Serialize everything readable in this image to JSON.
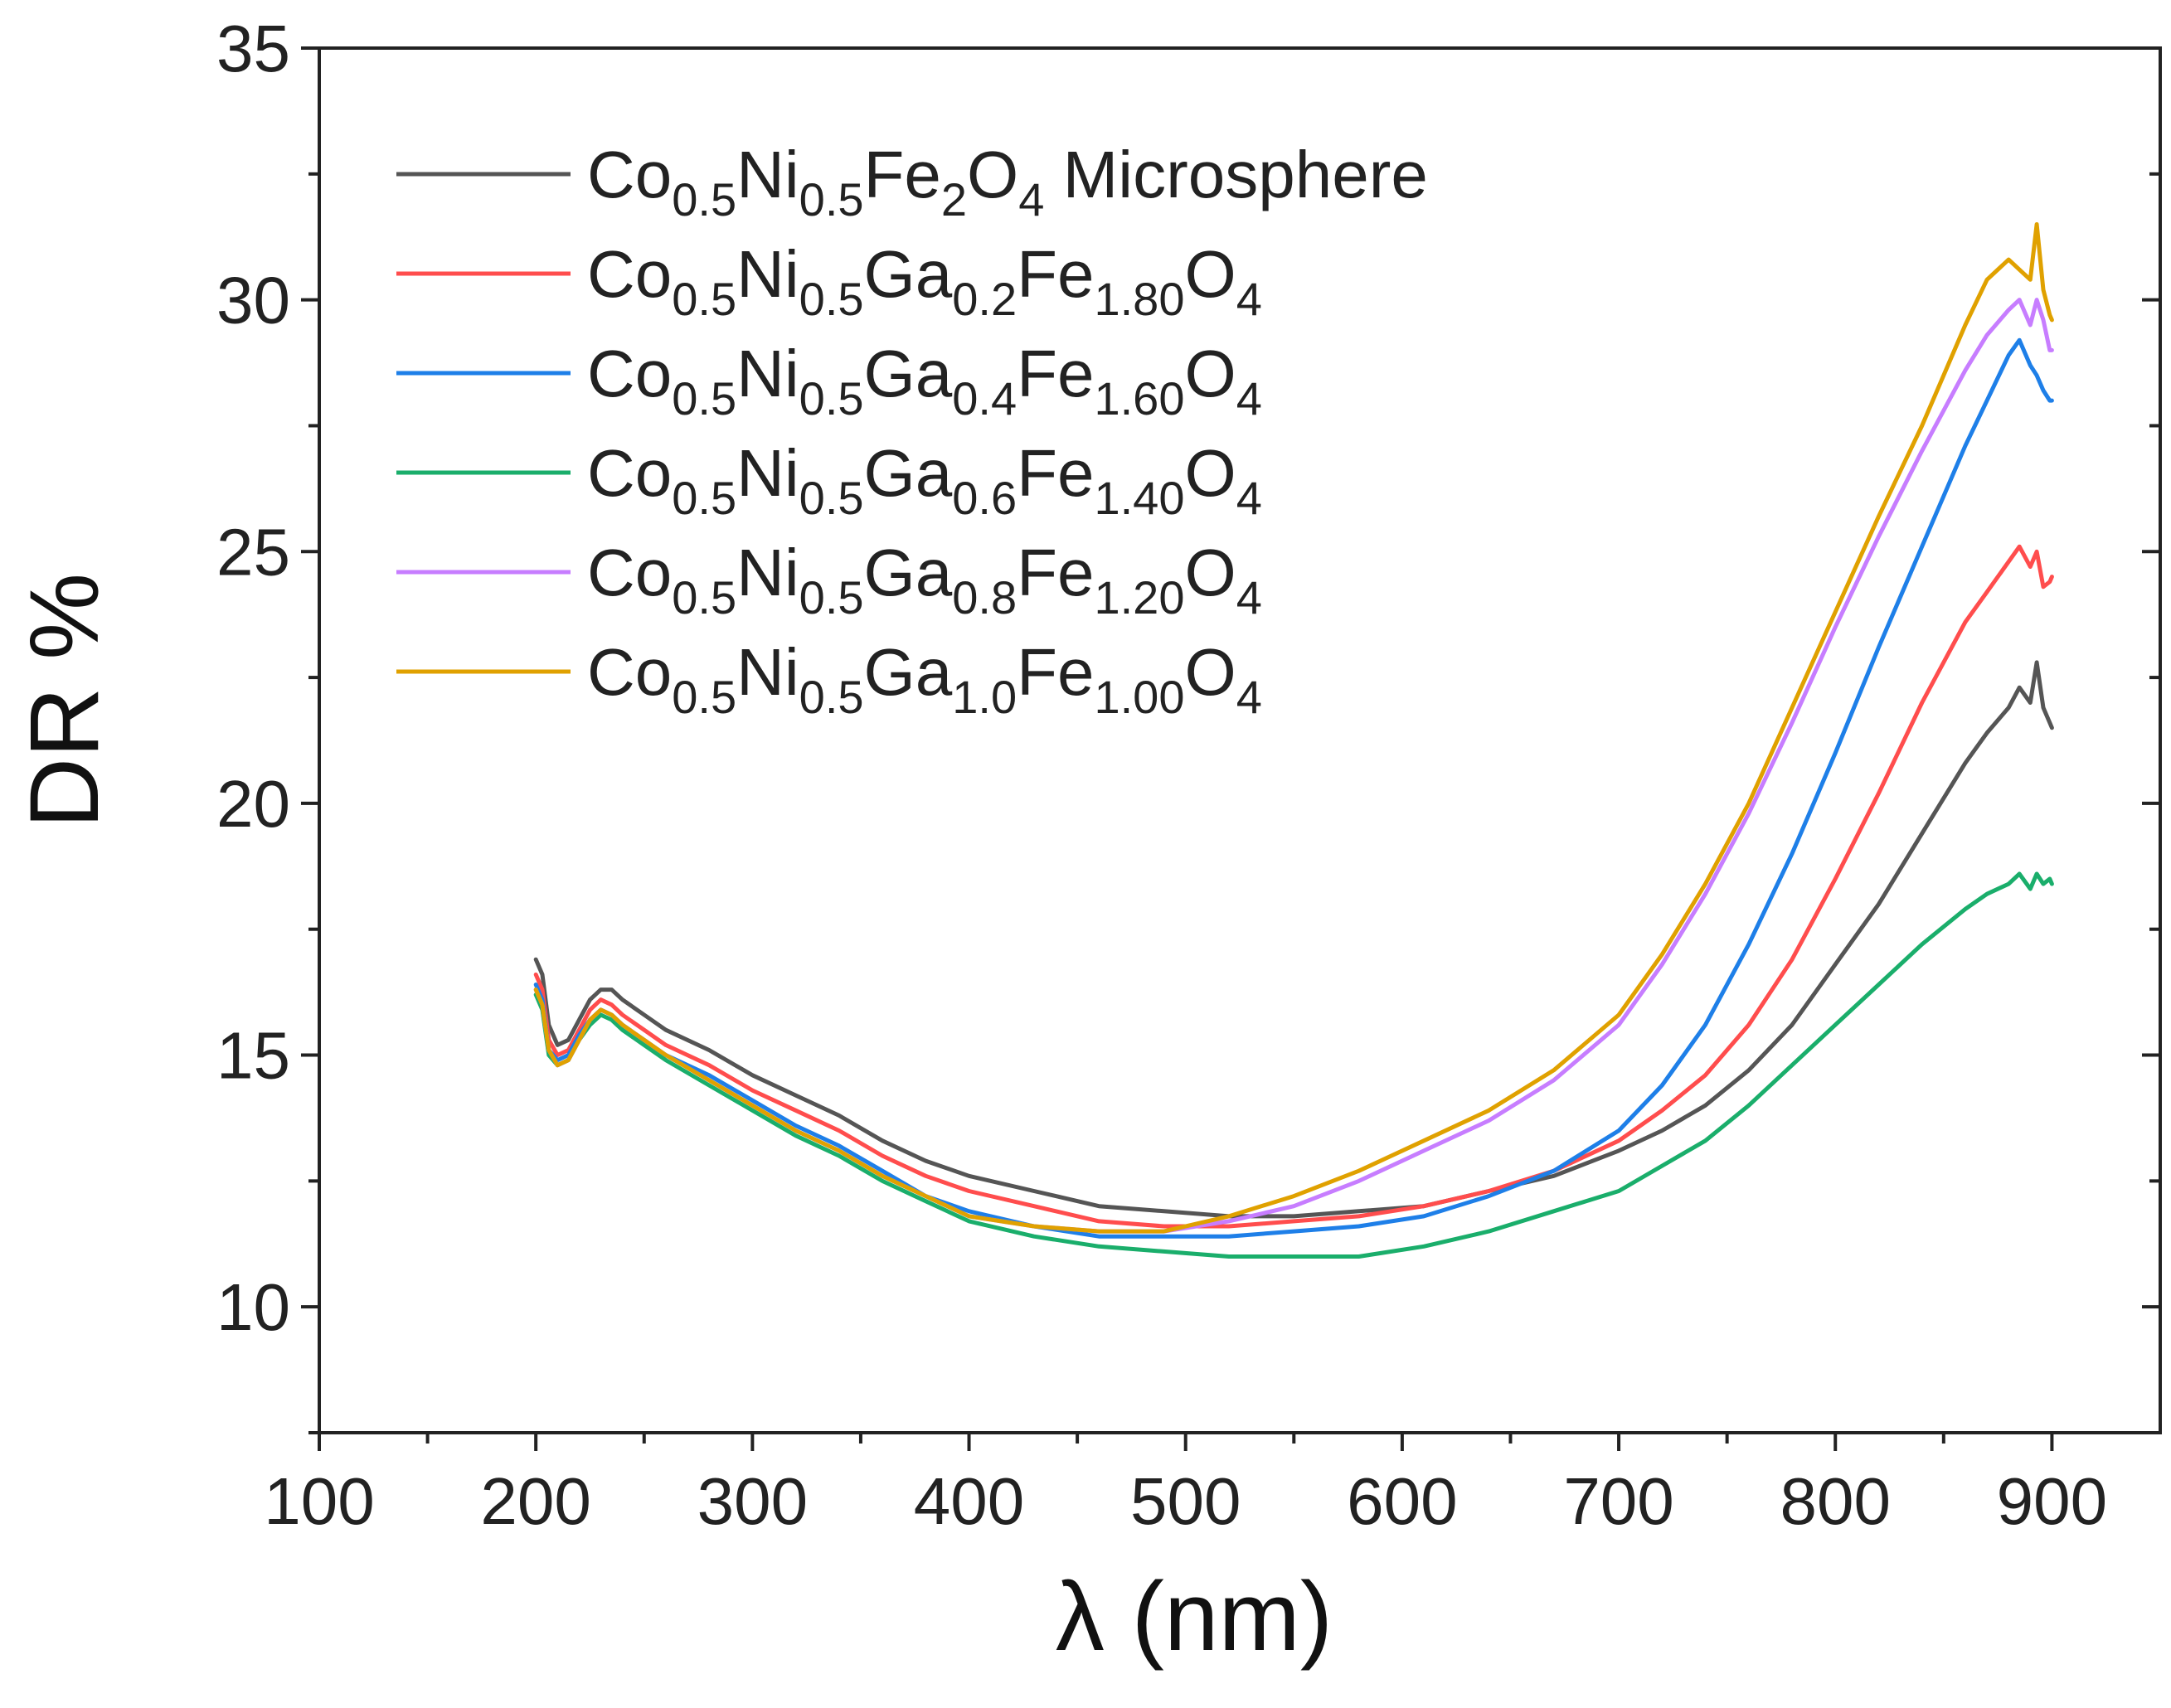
{
  "chart_data": {
    "type": "line",
    "title": "",
    "xlabel": "λ (nm)",
    "ylabel": "DR %",
    "xlim": [
      100,
      950
    ],
    "ylim": [
      7.5,
      35
    ],
    "xticks": [
      100,
      200,
      300,
      400,
      500,
      600,
      700,
      800,
      900
    ],
    "yticks": [
      10,
      15,
      20,
      25,
      30,
      35
    ],
    "grid": false,
    "legend_position": "top-left",
    "series": [
      {
        "name": "Co0.5Ni0.5Fe2O4 Microsphere",
        "legend_parts": [
          [
            "Co",
            ""
          ],
          [
            "0.5",
            "sub"
          ],
          [
            "Ni",
            ""
          ],
          [
            "0.5",
            "sub"
          ],
          [
            "Fe",
            ""
          ],
          [
            "2",
            "sub"
          ],
          [
            "O",
            ""
          ],
          [
            "4",
            "sub"
          ],
          [
            " Microsphere",
            ""
          ]
        ],
        "color": "#555555",
        "x": [
          200,
          203,
          206,
          210,
          215,
          220,
          225,
          230,
          235,
          240,
          250,
          260,
          280,
          300,
          320,
          340,
          360,
          380,
          400,
          430,
          460,
          490,
          520,
          550,
          580,
          610,
          640,
          670,
          700,
          720,
          740,
          760,
          780,
          800,
          820,
          840,
          860,
          870,
          880,
          885,
          890,
          893,
          896,
          899,
          900
        ],
        "y": [
          16.9,
          16.6,
          15.6,
          15.2,
          15.3,
          15.7,
          16.1,
          16.3,
          16.3,
          16.1,
          15.8,
          15.5,
          15.1,
          14.6,
          14.2,
          13.8,
          13.3,
          12.9,
          12.6,
          12.3,
          12.0,
          11.9,
          11.8,
          11.8,
          11.9,
          12.0,
          12.3,
          12.6,
          13.1,
          13.5,
          14.0,
          14.7,
          15.6,
          16.8,
          18.0,
          19.4,
          20.8,
          21.4,
          21.9,
          22.3,
          22.0,
          22.8,
          21.9,
          21.6,
          21.5
        ]
      },
      {
        "name": "Co0.5Ni0.5Ga0.2Fe1.80O4",
        "legend_parts": [
          [
            "Co",
            ""
          ],
          [
            "0.5",
            "sub"
          ],
          [
            "Ni",
            ""
          ],
          [
            "0.5",
            "sub"
          ],
          [
            "Ga",
            ""
          ],
          [
            "0.2",
            "sub"
          ],
          [
            "Fe",
            ""
          ],
          [
            "1.80",
            "sub"
          ],
          [
            "O",
            ""
          ],
          [
            "4",
            "sub"
          ]
        ],
        "color": "#ff4d4d",
        "x": [
          200,
          203,
          206,
          210,
          215,
          220,
          225,
          230,
          235,
          240,
          250,
          260,
          280,
          300,
          320,
          340,
          360,
          380,
          400,
          430,
          460,
          490,
          520,
          550,
          580,
          610,
          640,
          670,
          700,
          720,
          740,
          760,
          780,
          800,
          820,
          840,
          860,
          870,
          880,
          885,
          890,
          893,
          896,
          899,
          900
        ],
        "y": [
          16.6,
          16.3,
          15.3,
          15.0,
          15.1,
          15.5,
          15.9,
          16.1,
          16.0,
          15.8,
          15.5,
          15.2,
          14.8,
          14.3,
          13.9,
          13.5,
          13.0,
          12.6,
          12.3,
          12.0,
          11.7,
          11.6,
          11.6,
          11.7,
          11.8,
          12.0,
          12.3,
          12.7,
          13.3,
          13.9,
          14.6,
          15.6,
          16.9,
          18.5,
          20.2,
          22.0,
          23.6,
          24.2,
          24.8,
          25.1,
          24.7,
          25.0,
          24.3,
          24.4,
          24.5
        ]
      },
      {
        "name": "Co0.5Ni0.5Ga0.4Fe1.60O4",
        "legend_parts": [
          [
            "Co",
            ""
          ],
          [
            "0.5",
            "sub"
          ],
          [
            "Ni",
            ""
          ],
          [
            "0.5",
            "sub"
          ],
          [
            "Ga",
            ""
          ],
          [
            "0.4",
            "sub"
          ],
          [
            "Fe",
            ""
          ],
          [
            "1.60",
            "sub"
          ],
          [
            "O",
            ""
          ],
          [
            "4",
            "sub"
          ]
        ],
        "color": "#1e7fe8",
        "x": [
          200,
          203,
          206,
          210,
          215,
          220,
          225,
          230,
          235,
          240,
          250,
          260,
          280,
          300,
          320,
          340,
          360,
          380,
          400,
          430,
          460,
          490,
          520,
          550,
          580,
          610,
          640,
          670,
          700,
          720,
          740,
          760,
          780,
          800,
          820,
          840,
          860,
          870,
          880,
          885,
          890,
          893,
          896,
          899,
          900
        ],
        "y": [
          16.4,
          16.1,
          15.1,
          14.9,
          15.0,
          15.4,
          15.7,
          15.9,
          15.8,
          15.6,
          15.3,
          15.0,
          14.6,
          14.1,
          13.6,
          13.2,
          12.7,
          12.2,
          11.9,
          11.6,
          11.4,
          11.4,
          11.4,
          11.5,
          11.6,
          11.8,
          12.2,
          12.7,
          13.5,
          14.4,
          15.6,
          17.2,
          19.0,
          21.0,
          23.1,
          25.1,
          27.1,
          28.0,
          28.9,
          29.2,
          28.7,
          28.5,
          28.2,
          28.0,
          28.0
        ]
      },
      {
        "name": "Co0.5Ni0.5Ga0.6Fe1.40O4",
        "legend_parts": [
          [
            "Co",
            ""
          ],
          [
            "0.5",
            "sub"
          ],
          [
            "Ni",
            ""
          ],
          [
            "0.5",
            "sub"
          ],
          [
            "Ga",
            ""
          ],
          [
            "0.6",
            "sub"
          ],
          [
            "Fe",
            ""
          ],
          [
            "1.40",
            "sub"
          ],
          [
            "O",
            ""
          ],
          [
            "4",
            "sub"
          ]
        ],
        "color": "#1aae6b",
        "x": [
          200,
          203,
          206,
          210,
          215,
          220,
          225,
          230,
          235,
          240,
          250,
          260,
          280,
          300,
          320,
          340,
          360,
          380,
          400,
          430,
          460,
          490,
          520,
          550,
          580,
          610,
          640,
          670,
          700,
          720,
          740,
          760,
          780,
          800,
          820,
          840,
          860,
          870,
          880,
          885,
          890,
          893,
          896,
          899,
          900
        ],
        "y": [
          16.2,
          15.9,
          15.0,
          14.8,
          14.9,
          15.3,
          15.6,
          15.8,
          15.7,
          15.5,
          15.2,
          14.9,
          14.4,
          13.9,
          13.4,
          13.0,
          12.5,
          12.1,
          11.7,
          11.4,
          11.2,
          11.1,
          11.0,
          11.0,
          11.0,
          11.2,
          11.5,
          11.9,
          12.3,
          12.8,
          13.3,
          14.0,
          14.8,
          15.6,
          16.4,
          17.2,
          17.9,
          18.2,
          18.4,
          18.6,
          18.3,
          18.6,
          18.4,
          18.5,
          18.4
        ]
      },
      {
        "name": "Co0.5Ni0.5Ga0.8Fe1.20O4",
        "legend_parts": [
          [
            "Co",
            ""
          ],
          [
            "0.5",
            "sub"
          ],
          [
            "Ni",
            ""
          ],
          [
            "0.5",
            "sub"
          ],
          [
            "Ga",
            ""
          ],
          [
            "0.8",
            "sub"
          ],
          [
            "Fe",
            ""
          ],
          [
            "1.20",
            "sub"
          ],
          [
            "O",
            ""
          ],
          [
            "4",
            "sub"
          ]
        ],
        "color": "#c77dff",
        "x": [
          200,
          203,
          206,
          210,
          215,
          220,
          225,
          230,
          235,
          240,
          250,
          260,
          280,
          300,
          320,
          340,
          360,
          380,
          400,
          430,
          460,
          490,
          520,
          550,
          580,
          610,
          640,
          670,
          700,
          720,
          740,
          760,
          780,
          800,
          820,
          840,
          860,
          870,
          880,
          885,
          890,
          893,
          896,
          899,
          900
        ],
        "y": [
          16.3,
          16.0,
          15.1,
          14.8,
          14.9,
          15.3,
          15.7,
          15.9,
          15.8,
          15.6,
          15.3,
          15.0,
          14.5,
          14.0,
          13.5,
          13.1,
          12.6,
          12.2,
          11.8,
          11.6,
          11.5,
          11.5,
          11.7,
          12.0,
          12.5,
          13.1,
          13.7,
          14.5,
          15.6,
          16.8,
          18.2,
          19.8,
          21.6,
          23.5,
          25.3,
          27.0,
          28.6,
          29.3,
          29.8,
          30.0,
          29.5,
          30.0,
          29.6,
          29.0,
          29.0
        ]
      },
      {
        "name": "Co0.5Ni0.5Ga1.0Fe1.00O4",
        "legend_parts": [
          [
            "Co",
            ""
          ],
          [
            "0.5",
            "sub"
          ],
          [
            "Ni",
            ""
          ],
          [
            "0.5",
            "sub"
          ],
          [
            "Ga",
            ""
          ],
          [
            "1.0",
            "sub"
          ],
          [
            "Fe",
            ""
          ],
          [
            "1.00",
            "sub"
          ],
          [
            "O",
            ""
          ],
          [
            "4",
            "sub"
          ]
        ],
        "color": "#e0a100",
        "x": [
          200,
          203,
          206,
          210,
          215,
          220,
          225,
          230,
          235,
          240,
          250,
          260,
          280,
          300,
          320,
          340,
          360,
          380,
          400,
          430,
          460,
          490,
          520,
          550,
          580,
          610,
          640,
          670,
          700,
          720,
          740,
          760,
          780,
          800,
          820,
          840,
          860,
          870,
          880,
          885,
          890,
          893,
          896,
          899,
          900
        ],
        "y": [
          16.3,
          16.0,
          15.1,
          14.8,
          14.9,
          15.3,
          15.7,
          15.9,
          15.8,
          15.6,
          15.3,
          15.0,
          14.5,
          14.0,
          13.5,
          13.1,
          12.6,
          12.2,
          11.8,
          11.6,
          11.5,
          11.5,
          11.8,
          12.2,
          12.7,
          13.3,
          13.9,
          14.7,
          15.8,
          17.0,
          18.4,
          20.0,
          21.9,
          23.8,
          25.7,
          27.5,
          29.5,
          30.4,
          30.8,
          30.6,
          30.4,
          31.5,
          30.2,
          29.7,
          29.6
        ]
      }
    ]
  }
}
